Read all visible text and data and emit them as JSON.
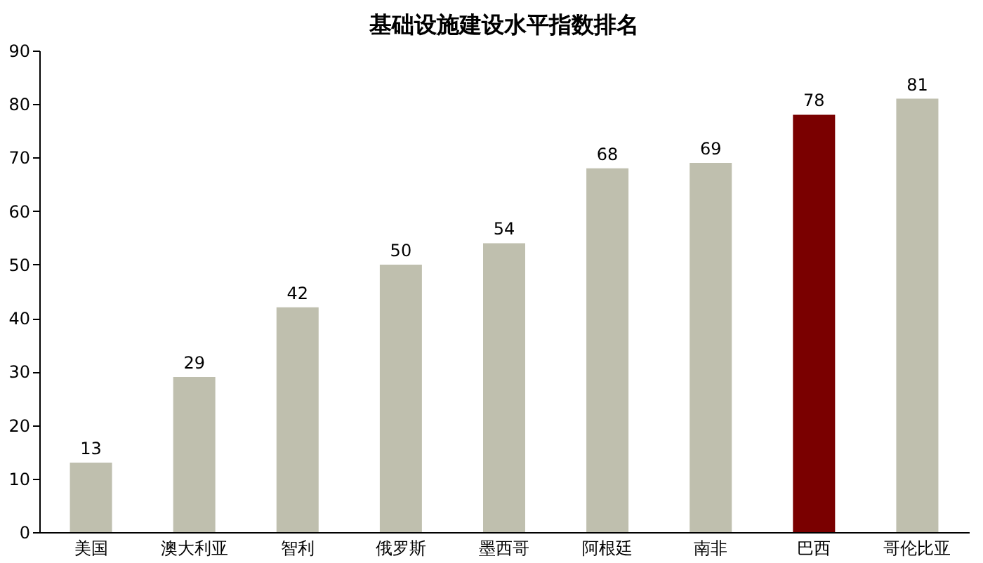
{
  "chart_data": {
    "type": "bar",
    "title": "基础设施建设水平指数排名",
    "categories": [
      "美国",
      "澳大利亚",
      "智利",
      "俄罗斯",
      "墨西哥",
      "阿根廷",
      "南非",
      "巴西",
      "哥伦比亚"
    ],
    "values": [
      13,
      29,
      42,
      50,
      54,
      68,
      69,
      78,
      81
    ],
    "colors": [
      "#bfbfae",
      "#bfbfae",
      "#bfbfae",
      "#bfbfae",
      "#bfbfae",
      "#bfbfae",
      "#bfbfae",
      "#7a0000",
      "#bfbfae"
    ],
    "ylim": [
      0,
      90
    ],
    "yticks": [
      0,
      10,
      20,
      30,
      40,
      50,
      60,
      70,
      80,
      90
    ],
    "data_labels": true,
    "grid": false
  }
}
